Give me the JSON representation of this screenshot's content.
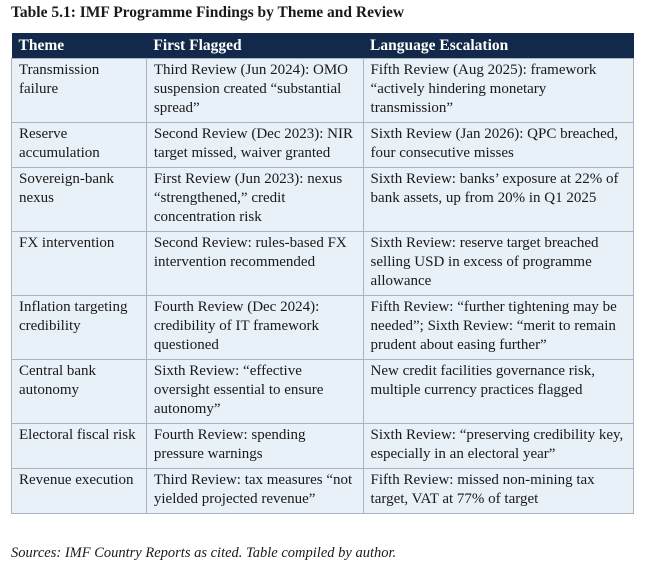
{
  "title": "Table 5.1: IMF Programme Findings by Theme and Review",
  "columns": [
    "Theme",
    "First Flagged",
    "Language Escalation"
  ],
  "rows": [
    [
      "Transmission failure",
      "Third Review (Jun 2024): OMO suspension created “substantial spread”",
      "Fifth Review (Aug 2025): framework “actively hindering monetary transmission”"
    ],
    [
      "Reserve accumulation",
      "Second Review (Dec 2023): NIR target missed, waiver granted",
      "Sixth Review (Jan 2026): QPC breached, four consecutive misses"
    ],
    [
      "Sovereign-bank nexus",
      "First Review (Jun 2023): nexus “strengthened,” credit concentration risk",
      "Sixth Review: banks’ exposure at 22% of bank assets, up from 20% in Q1 2025"
    ],
    [
      "FX intervention",
      "Second Review: rules-based FX intervention recommended",
      "Sixth Review: reserve target breached selling USD in excess of programme allowance"
    ],
    [
      "Inflation targeting credibility",
      "Fourth Review (Dec 2024): credibility of IT framework questioned",
      "Fifth Review: “further tightening may be needed”; Sixth Review: “merit to remain prudent about easing further”"
    ],
    [
      "Central bank autonomy",
      "Sixth Review: “effective oversight essential to ensure autonomy”",
      "New credit facilities governance risk, multiple currency practices flagged"
    ],
    [
      "Electoral fiscal risk",
      "Fourth Review: spending pressure warnings",
      "Sixth Review: “preserving credibility key, especially in an electoral year”"
    ],
    [
      "Revenue execution",
      "Third Review: tax measures “not yielded projected revenue”",
      "Fifth Review: missed non-mining tax target, VAT at 77% of target"
    ]
  ],
  "source": "Sources: IMF Country Reports as cited. Table compiled by author.",
  "colors": {
    "header_bg": "#13294b",
    "cell_bg": "#e8f0f8",
    "border": "#a9b4c0"
  }
}
